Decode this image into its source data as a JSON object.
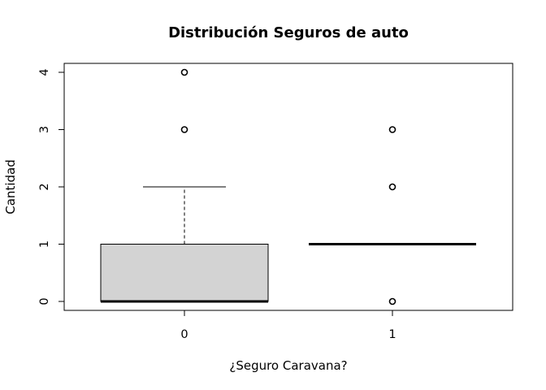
{
  "chart_data": {
    "type": "boxplot",
    "title": "Distribución Seguros de auto",
    "xlabel": "¿Seguro Caravana?",
    "ylabel": "Cantidad",
    "categories": [
      "0",
      "1"
    ],
    "yticks": [
      "0",
      "1",
      "2",
      "3",
      "4"
    ],
    "ylim": [
      -0.16,
      4.16
    ],
    "grid": false,
    "boxes": [
      {
        "category": "0",
        "whisker_low": 0,
        "q1": 0,
        "median": 0,
        "q3": 1,
        "whisker_high": 2,
        "outliers": [
          3,
          4
        ]
      },
      {
        "category": "1",
        "whisker_low": 1,
        "q1": 1,
        "median": 1,
        "q3": 1,
        "whisker_high": 1,
        "outliers": [
          0,
          2,
          3
        ]
      }
    ],
    "colors": {
      "box_fill": "#d3d3d3",
      "stroke": "#000000"
    }
  }
}
